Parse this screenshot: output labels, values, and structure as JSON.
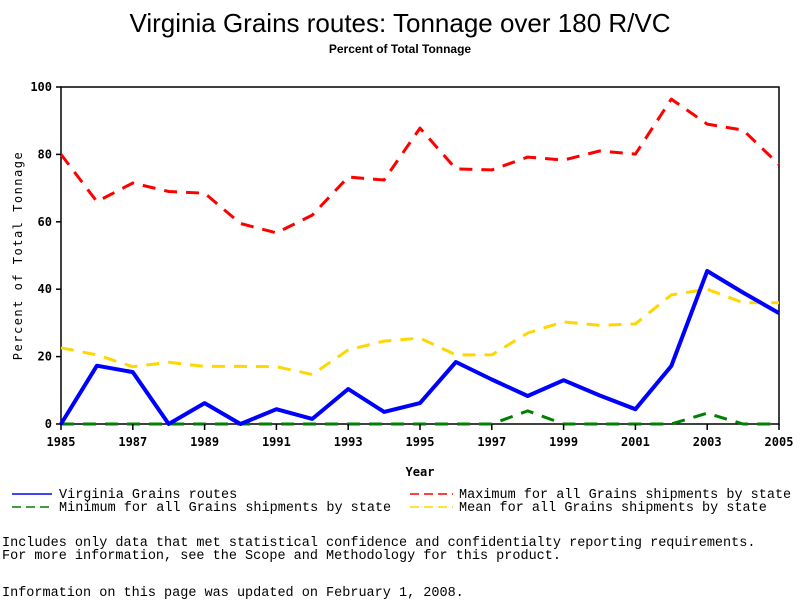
{
  "chart_data": {
    "type": "line",
    "title": "Virginia Grains routes: Tonnage over 180 R/VC",
    "subtitle": "Percent of Total Tonnage",
    "xlabel": "Year",
    "ylabel": "Percent of Total Tonnage",
    "xlim": [
      1985,
      2005
    ],
    "ylim": [
      0,
      100
    ],
    "x_ticks": [
      "1985",
      "1987",
      "1989",
      "1991",
      "1993",
      "1995",
      "1997",
      "1999",
      "2001",
      "2003",
      "2005"
    ],
    "y_ticks": [
      "0",
      "20",
      "40",
      "60",
      "80",
      "100"
    ],
    "x": [
      1985,
      1986,
      1987,
      1988,
      1989,
      1990,
      1991,
      1992,
      1993,
      1994,
      1995,
      1996,
      1997,
      1998,
      1999,
      2000,
      2001,
      2002,
      2003,
      2004,
      2005
    ],
    "grid": false,
    "legend_position": "bottom",
    "series": [
      {
        "name": "Virginia Grains routes",
        "color": "#0000ff",
        "style": "solid",
        "values": [
          0,
          17.3,
          15.4,
          0,
          6.2,
          0,
          4.4,
          1.5,
          10.4,
          3.6,
          6.2,
          18.4,
          13.2,
          8.3,
          13,
          8.5,
          4.4,
          17.2,
          45.4,
          39,
          32.9
        ]
      },
      {
        "name": "Maximum for all Grains shipments by state",
        "color": "#ff0000",
        "style": "dashed",
        "values": [
          80,
          66,
          71.5,
          69,
          68.5,
          59.5,
          56.7,
          62,
          73.3,
          72.4,
          87.8,
          75.7,
          75.4,
          79.2,
          78.3,
          81,
          80.1,
          96.4,
          89,
          87.2,
          77
        ]
      },
      {
        "name": "Minimum for all Grains shipments by state",
        "color": "#008000",
        "style": "dashed",
        "values": [
          0,
          0,
          0,
          0,
          0,
          0,
          0,
          0,
          0,
          0,
          0,
          0,
          0,
          3.9,
          0,
          0,
          0,
          0,
          3.2,
          0,
          0
        ]
      },
      {
        "name": "Mean for all Grains shipments by state",
        "color": "#ffd700",
        "style": "dashed",
        "values": [
          22.6,
          20.5,
          17,
          18.3,
          17.1,
          17.1,
          17,
          14.7,
          22,
          24.6,
          25.5,
          20.5,
          20.5,
          27,
          30.3,
          29.3,
          29.7,
          38.3,
          40,
          36,
          36
        ]
      }
    ]
  },
  "notes": {
    "line1": "Includes only data that met statistical confidence and confidentialty reporting requirements.",
    "line2": "For more information, see the Scope and Methodology for this product.",
    "updated": "Information on this page was updated on February 1, 2008."
  }
}
